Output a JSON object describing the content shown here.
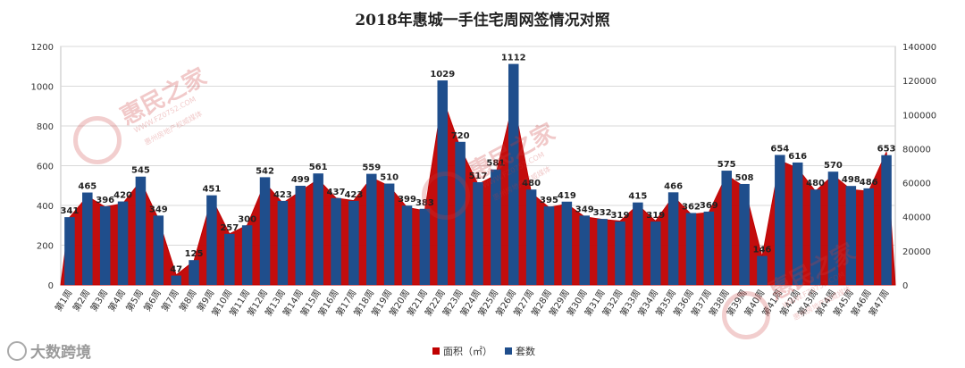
{
  "chart_data": {
    "type": "bar+area",
    "title": "2018年惠城一手住宅周网签情况对照",
    "categories": [
      "第1周",
      "第2周",
      "第3周",
      "第4周",
      "第5周",
      "第6周",
      "第7周",
      "第8周",
      "第9周",
      "第10周",
      "第11周",
      "第12周",
      "第13周",
      "第14周",
      "第15周",
      "第16周",
      "第17周",
      "第18周",
      "第19周",
      "第20周",
      "第21周",
      "第22周",
      "第23周",
      "第24周",
      "第25周",
      "第26周",
      "第27周",
      "第28周",
      "第29周",
      "第30周",
      "第31周",
      "第32周",
      "第33周",
      "第34周",
      "第35周",
      "第36周",
      "第37周",
      "第38周",
      "第39周",
      "第40周",
      "第41周",
      "第42周",
      "第43周",
      "第44周",
      "第45周",
      "第46周",
      "第47周"
    ],
    "series": [
      {
        "name": "套数",
        "type": "bar",
        "axis": "left",
        "color": "#1f4e8c",
        "values": [
          341,
          465,
          396,
          420,
          545,
          349,
          47,
          125,
          451,
          257,
          300,
          542,
          423,
          499,
          561,
          437,
          423,
          559,
          510,
          399,
          383,
          1029,
          720,
          517,
          581,
          1112,
          480,
          395,
          419,
          349,
          332,
          319,
          415,
          319,
          466,
          362,
          369,
          575,
          508,
          146,
          654,
          616,
          480,
          570,
          498,
          486,
          653
        ]
      },
      {
        "name": "面积（㎡）",
        "type": "area",
        "axis": "right",
        "color": "#c00000",
        "values": [
          39700,
          52000,
          45800,
          47800,
          61000,
          38700,
          5800,
          14000,
          51000,
          30000,
          35000,
          60000,
          48000,
          55000,
          62000,
          51000,
          49500,
          63000,
          58000,
          45500,
          43500,
          110000,
          80500,
          59000,
          64500,
          108000,
          54000,
          45500,
          47500,
          40000,
          38500,
          37500,
          47000,
          37500,
          52000,
          41500,
          42500,
          64500,
          57500,
          16500,
          73000,
          68500,
          55000,
          64500,
          56000,
          55000,
          78000
        ]
      }
    ],
    "left_axis": {
      "min": 0,
      "max": 1200,
      "step": 200,
      "ticks": [
        "0",
        "200",
        "400",
        "600",
        "800",
        "1000",
        "1200"
      ]
    },
    "right_axis": {
      "min": 0,
      "max": 140000,
      "step": 20000,
      "ticks": [
        "0",
        "20000",
        "40000",
        "60000",
        "80000",
        "100000",
        "120000",
        "140000"
      ]
    },
    "grid": true,
    "legend_position": "bottom",
    "legend": {
      "area_label": "面积（㎡）",
      "bar_label": "套数"
    }
  },
  "watermark": {
    "brand": "惠民之家",
    "url": "WWW.FZ0752.COM",
    "tagline": "惠州房地产权威媒体"
  },
  "source": {
    "label": "大数跨境"
  }
}
